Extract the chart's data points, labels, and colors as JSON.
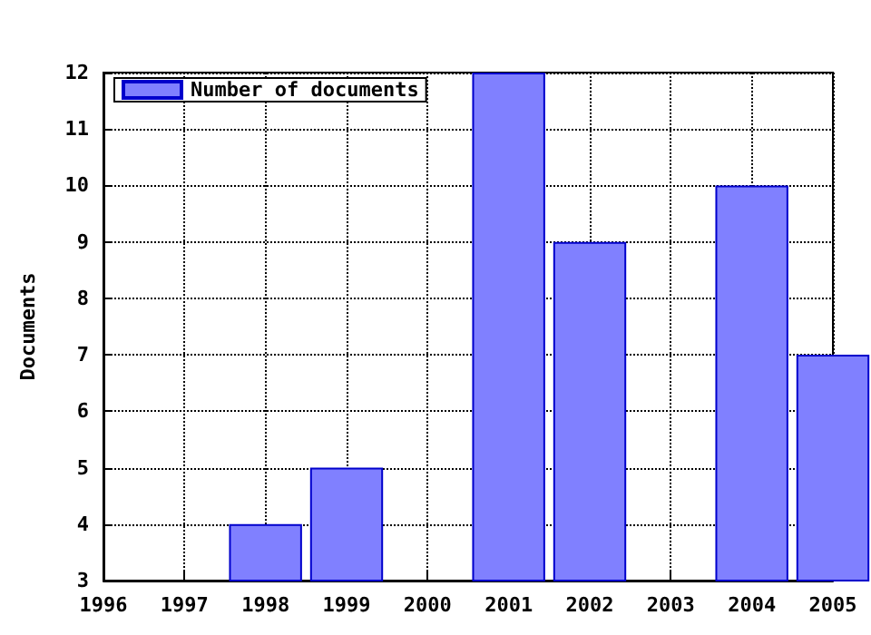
{
  "chart_data": {
    "type": "bar",
    "ylabel": "Documents",
    "x": [
      1998,
      1999,
      2001,
      2002,
      2004,
      2005
    ],
    "series": [
      {
        "name": "Number of documents",
        "color": "#8080ff",
        "values": [
          4,
          5,
          12,
          9,
          10,
          7
        ]
      }
    ],
    "xlim": [
      1996,
      2005
    ],
    "xticks": [
      1996,
      1997,
      1998,
      1999,
      2000,
      2001,
      2002,
      2003,
      2004,
      2005
    ],
    "ylim": [
      3,
      12
    ],
    "yticks": [
      3,
      4,
      5,
      6,
      7,
      8,
      9,
      10,
      11,
      12
    ],
    "grid": true,
    "legend": "top left"
  }
}
